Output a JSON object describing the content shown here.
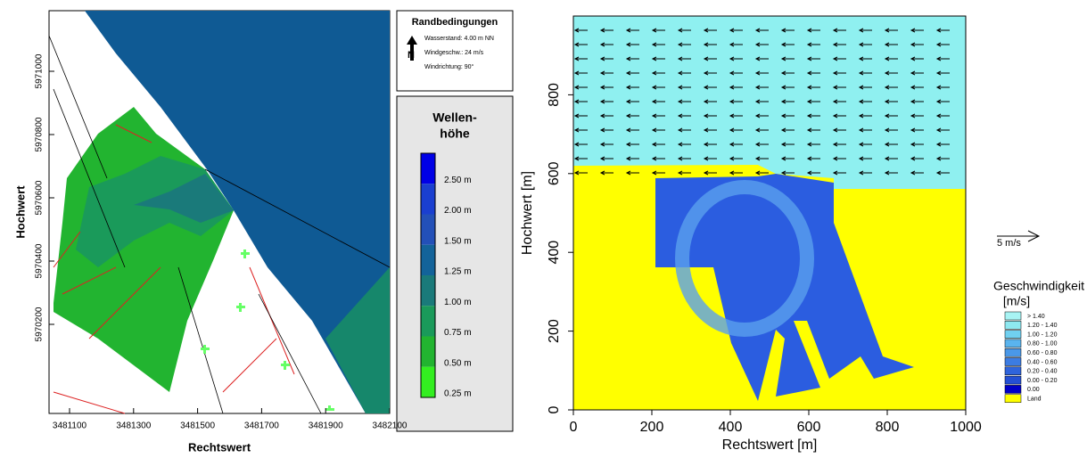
{
  "left_panel": {
    "y_axis_label": "Hochwert",
    "x_axis_label": "Rechtswert",
    "y_ticks": [
      "5970200",
      "5970400",
      "5970600",
      "5970800",
      "5971000"
    ],
    "x_ticks": [
      "3481100",
      "3481300",
      "3481500",
      "3481700",
      "3481900",
      "3482100"
    ]
  },
  "boundary_conditions": {
    "title": "Randbedingungen",
    "lines": [
      "Wasserstand: 4.00 m NN",
      "Windgeschw.: 24 m/s",
      "Windrichtung: 90°"
    ]
  },
  "wave_legend": {
    "title_lines": [
      "Wellen-",
      "höhe"
    ],
    "items": [
      "2.50 m",
      "2.00 m",
      "1.50 m",
      "1.25 m",
      "1.00 m",
      "0.75 m",
      "0.50 m",
      "0.25 m"
    ]
  },
  "right_panel": {
    "y_axis_label": "Hochwert  [m]",
    "x_axis_label": "Rechtswert  [m]",
    "y_ticks": [
      "0",
      "200",
      "400",
      "600",
      "800"
    ],
    "x_ticks": [
      "0",
      "200",
      "400",
      "600",
      "800",
      "1000"
    ]
  },
  "velocity_legend": {
    "scale_label": "5 m/s",
    "title": "Geschwindigkeit",
    "unit": "[m/s]",
    "items": [
      "> 1.40",
      "1.20 - 1.40",
      "1.00 - 1.20",
      "0.80 - 1.00",
      "0.60 - 0.80",
      "0.40 - 0.60",
      "0.20 - 0.40",
      "0.00 - 0.20",
      "0.00",
      "Land"
    ]
  }
}
